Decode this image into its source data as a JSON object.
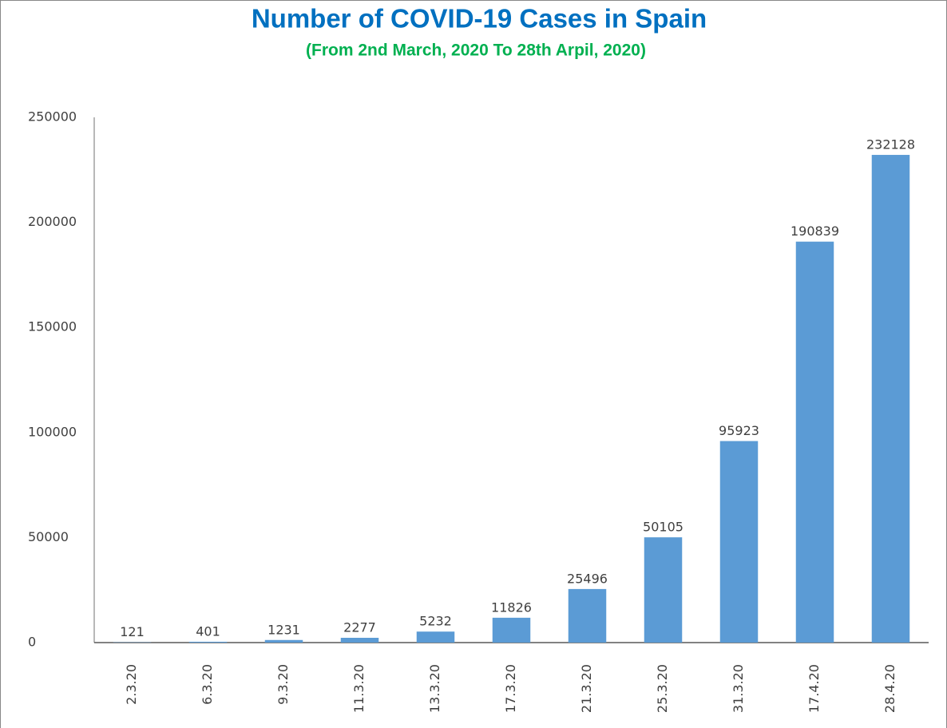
{
  "chart_data": {
    "type": "bar",
    "title": "Number of COVID-19 Cases in Spain",
    "subtitle": "(From 2nd March, 2020 To 28th Arpil, 2020)",
    "categories": [
      "2.3.20",
      "6.3.20",
      "9.3.20",
      "11.3.20",
      "13.3.20",
      "17.3.20",
      "21.3.20",
      "25.3.20",
      "31.3.20",
      "17.4.20",
      "28.4.20"
    ],
    "values": [
      121,
      401,
      1231,
      2277,
      5232,
      11826,
      25496,
      50105,
      95923,
      190839,
      232128
    ],
    "color": "#5b9bd5",
    "ylim": [
      0,
      250000
    ],
    "yticks": [
      0,
      50000,
      100000,
      150000,
      200000,
      250000
    ],
    "grid": false
  }
}
